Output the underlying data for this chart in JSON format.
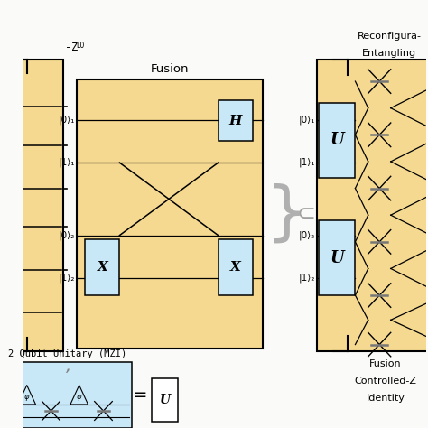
{
  "bg_color": "#FAFAF8",
  "orange_fill": "#F5D990",
  "blue_fill": "#C8E8F8",
  "labels_qubit": [
    "|0⟩₁",
    "|1⟩₁",
    "|0⟩₂",
    "|1⟩₂"
  ],
  "gate_H": "H",
  "gate_X": "X",
  "gate_U": "U",
  "title_fusion": "Fusion",
  "title_reconfigura1": "Reconfigura-",
  "title_reconfigura2": "Entangling",
  "title_bottom_left": "2 Qubit Unitary (MZI)",
  "title_bottom_right1": "Fusion",
  "title_bottom_right2": "Controlled-Z",
  "title_bottom_right3": "Identity",
  "left_label1": "-Z",
  "left_label2": "LO",
  "brace_color": "#B0B0B0",
  "subset_color": "#A0A0A0"
}
